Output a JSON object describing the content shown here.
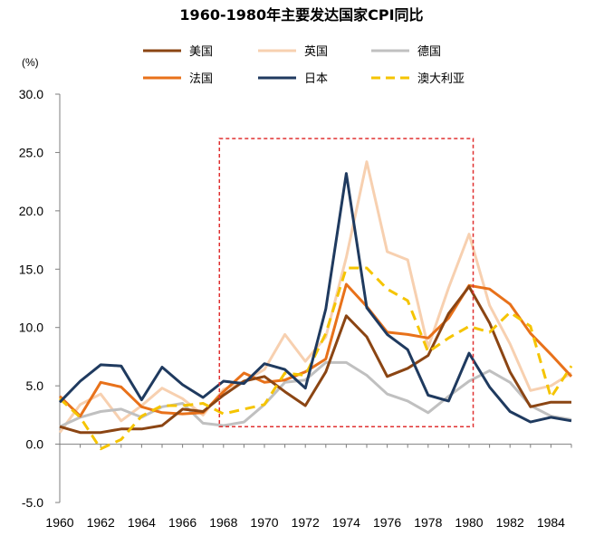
{
  "chart_data": {
    "type": "line",
    "title": "1960-1980年主要发达国家CPI同比",
    "ylabel": "(%)",
    "xlabel": "",
    "ylim": [
      -5,
      30
    ],
    "yticks": [
      "30.0",
      "25.0",
      "20.0",
      "15.0",
      "10.0",
      "5.0",
      "0.0",
      "-5.0"
    ],
    "ytick_values": [
      30,
      25,
      20,
      15,
      10,
      5,
      0,
      -5
    ],
    "xlim": [
      1960,
      1985
    ],
    "xticks": [
      "1960",
      "1962",
      "1964",
      "1966",
      "1968",
      "1970",
      "1972",
      "1974",
      "1976",
      "1978",
      "1980",
      "1982",
      "1984"
    ],
    "xtick_values": [
      1960,
      1962,
      1964,
      1966,
      1968,
      1970,
      1972,
      1974,
      1976,
      1978,
      1980,
      1982,
      1984
    ],
    "x": [
      1960,
      1961,
      1962,
      1963,
      1964,
      1965,
      1966,
      1967,
      1968,
      1969,
      1970,
      1971,
      1972,
      1973,
      1974,
      1975,
      1976,
      1977,
      1978,
      1979,
      1980,
      1981,
      1982,
      1983,
      1984,
      1985
    ],
    "highlight_box": {
      "x_range": [
        1967.8,
        1980.2
      ],
      "y_range": [
        1.5,
        26.2
      ],
      "color": "#e03030",
      "style": "dashed"
    },
    "legend_position": "top",
    "series": [
      {
        "name": "美国",
        "color": "#8b4513",
        "dash": "solid",
        "values": [
          1.5,
          1.0,
          1.0,
          1.3,
          1.3,
          1.6,
          3.0,
          2.8,
          4.2,
          5.4,
          5.8,
          4.5,
          3.3,
          6.2,
          11.0,
          9.2,
          5.8,
          6.5,
          7.6,
          11.2,
          13.5,
          10.4,
          6.2,
          3.2,
          3.6,
          3.6
        ]
      },
      {
        "name": "英国",
        "color": "#f7d0b0",
        "dash": "solid",
        "values": [
          1.0,
          3.4,
          4.3,
          2.0,
          3.3,
          4.8,
          3.9,
          2.5,
          4.7,
          5.4,
          6.4,
          9.4,
          7.1,
          9.2,
          16.0,
          24.2,
          16.5,
          15.8,
          8.3,
          13.4,
          18.0,
          11.9,
          8.6,
          4.6,
          5.0,
          6.1
        ]
      },
      {
        "name": "德国",
        "color": "#c0c0c0",
        "dash": "solid",
        "values": [
          1.5,
          2.3,
          2.8,
          3.0,
          2.3,
          3.2,
          3.5,
          1.8,
          1.6,
          1.9,
          3.4,
          5.3,
          5.5,
          7.0,
          7.0,
          5.9,
          4.3,
          3.7,
          2.7,
          4.1,
          5.4,
          6.3,
          5.3,
          3.3,
          2.4,
          2.1
        ]
      },
      {
        "name": "法国",
        "color": "#e8711a",
        "dash": "solid",
        "values": [
          4.1,
          2.4,
          5.3,
          4.9,
          3.2,
          2.7,
          2.6,
          2.7,
          4.5,
          6.1,
          5.3,
          5.5,
          6.2,
          7.3,
          13.7,
          11.8,
          9.6,
          9.4,
          9.1,
          10.8,
          13.6,
          13.3,
          12.0,
          9.5,
          7.7,
          5.8
        ]
      },
      {
        "name": "日本",
        "color": "#1f3a5f",
        "dash": "solid",
        "values": [
          3.6,
          5.4,
          6.8,
          6.7,
          3.8,
          6.6,
          5.1,
          4.0,
          5.4,
          5.2,
          6.9,
          6.4,
          4.8,
          11.6,
          23.2,
          11.7,
          9.4,
          8.1,
          4.2,
          3.7,
          7.8,
          4.9,
          2.8,
          1.9,
          2.3,
          2.0
        ]
      },
      {
        "name": "澳大利亚",
        "color": "#f5c400",
        "dash": "dashed",
        "values": [
          3.9,
          2.3,
          -0.4,
          0.4,
          2.4,
          3.3,
          3.3,
          3.5,
          2.6,
          3.0,
          3.4,
          6.1,
          5.9,
          9.5,
          15.1,
          15.1,
          13.3,
          12.3,
          7.9,
          9.1,
          10.1,
          9.6,
          11.3,
          10.1,
          4.0,
          6.7
        ]
      }
    ]
  }
}
